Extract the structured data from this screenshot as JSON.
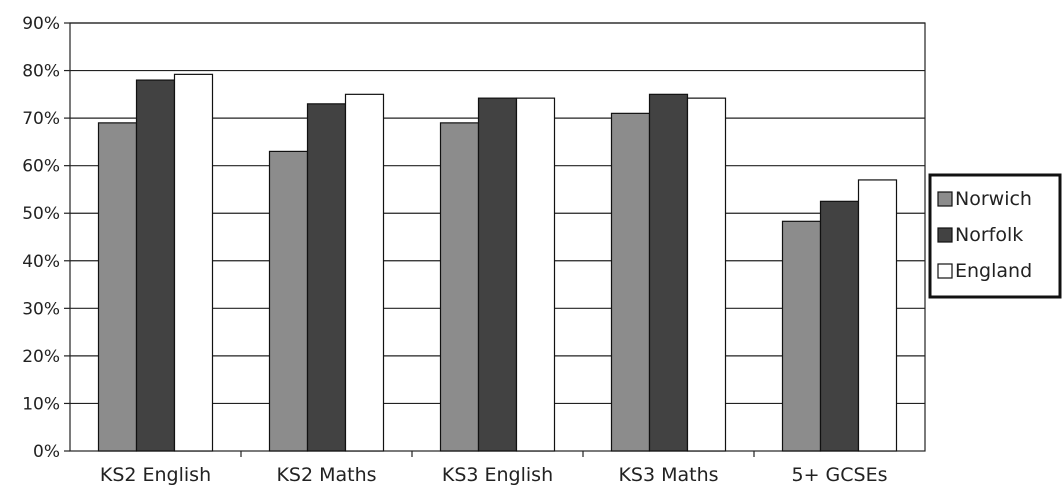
{
  "chart_data": {
    "type": "bar",
    "categories": [
      "KS2 English",
      "KS2 Maths",
      "KS3 English",
      "KS3 Maths",
      "5+ GCSEs"
    ],
    "series": [
      {
        "name": "Norwich",
        "values": [
          69,
          63,
          69,
          71,
          48.3
        ],
        "color": "#8c8c8c"
      },
      {
        "name": "Norfolk",
        "values": [
          78,
          73,
          74.2,
          75,
          52.5
        ],
        "color": "#424242"
      },
      {
        "name": "England",
        "values": [
          79.2,
          75,
          74.2,
          74.2,
          57
        ],
        "color": "#ffffff"
      }
    ],
    "yticks": [
      "0%",
      "10%",
      "20%",
      "30%",
      "40%",
      "50%",
      "60%",
      "70%",
      "80%",
      "90%"
    ],
    "ylim": [
      0,
      90
    ],
    "ystep": 10,
    "grid": true,
    "legend_position": "right"
  }
}
